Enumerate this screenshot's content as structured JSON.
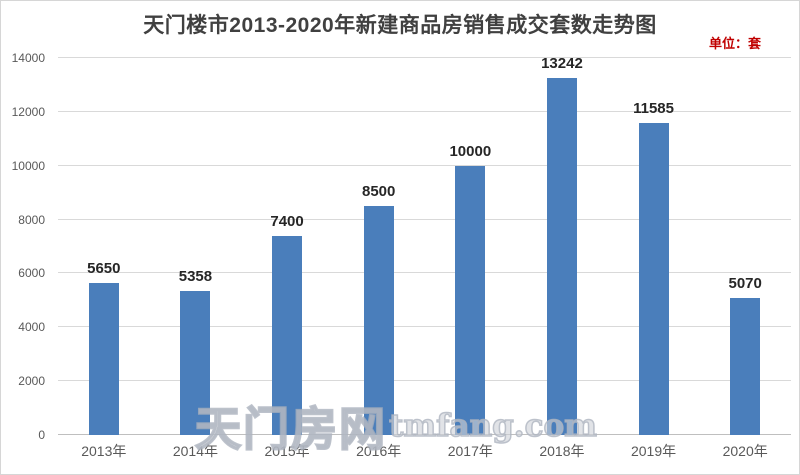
{
  "header": {
    "title": "天门楼市2013-2020年新建商品房销售成交套数走势图",
    "unit_label": "单位：套"
  },
  "watermark": {
    "cn": "天门房网",
    "en": "tmfang.com"
  },
  "colors": {
    "bar": "#4A7EBB",
    "title_text": "#404040",
    "unit_text": "#C00000",
    "axis_text": "#595959",
    "value_text": "#262626",
    "gridline": "#D9D9D9"
  },
  "chart_data": {
    "type": "bar",
    "title": "天门楼市2013-2020年新建商品房销售成交套数走势图",
    "unit": "套",
    "categories": [
      "2013年",
      "2014年",
      "2015年",
      "2016年",
      "2017年",
      "2018年",
      "2019年",
      "2020年"
    ],
    "values": [
      5650,
      5358,
      7400,
      8500,
      10000,
      13242,
      11585,
      5070
    ],
    "xlabel": "",
    "ylabel": "",
    "ylim": [
      0,
      14000
    ],
    "yticks": [
      0,
      2000,
      4000,
      6000,
      8000,
      10000,
      12000,
      14000
    ],
    "grid": true,
    "data_labels": true,
    "legend": false
  }
}
